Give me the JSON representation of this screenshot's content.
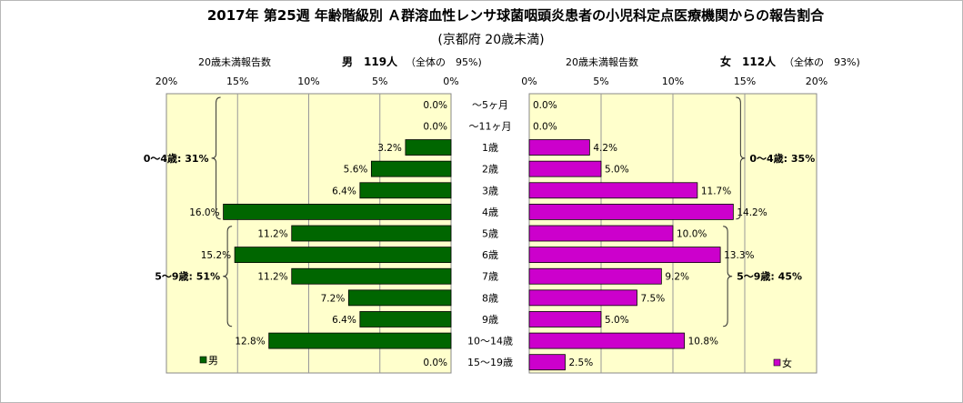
{
  "chart_data": {
    "type": "bar",
    "title": "2017年 第25週 年齢階級別 Ａ群溶血性レンサ球菌咽頭炎患者の小児科定点医療機関からの報告割合",
    "subtitle": "(京都府 20歳未満)",
    "categories": [
      "～5ヶ月",
      "～11ヶ月",
      "1歳",
      "2歳",
      "3歳",
      "4歳",
      "5歳",
      "6歳",
      "7歳",
      "8歳",
      "9歳",
      "10～14歳",
      "15～19歳"
    ],
    "tick_labels": [
      "0%",
      "5%",
      "10%",
      "15%",
      "20%"
    ],
    "xlim": [
      0,
      20
    ],
    "grid": true,
    "series": [
      {
        "name": "男",
        "side": "left",
        "color": "#006600",
        "values": [
          0.0,
          0.0,
          3.2,
          5.6,
          6.4,
          16.0,
          11.2,
          15.2,
          11.2,
          7.2,
          6.4,
          12.8,
          0.0
        ],
        "labels": [
          "0.0%",
          "0.0%",
          "3.2%",
          "5.6%",
          "6.4%",
          "16.0%",
          "11.2%",
          "15.2%",
          "11.2%",
          "7.2%",
          "6.4%",
          "12.8%",
          "0.0%"
        ],
        "header_count_label": "20歳未満報告数",
        "header_summary": "男　119人",
        "header_share": "（全体の　95%)",
        "groups": [
          {
            "label": "0～4歳: 31%",
            "from": 0,
            "to": 5
          },
          {
            "label": "5～9歳: 51%",
            "from": 6,
            "to": 10
          }
        ]
      },
      {
        "name": "女",
        "side": "right",
        "color": "#cc00cc",
        "values": [
          0.0,
          0.0,
          4.2,
          5.0,
          11.7,
          14.2,
          10.0,
          13.3,
          9.2,
          7.5,
          5.0,
          10.8,
          2.5
        ],
        "labels": [
          "0.0%",
          "0.0%",
          "4.2%",
          "5.0%",
          "11.7%",
          "14.2%",
          "10.0%",
          "13.3%",
          "9.2%",
          "7.5%",
          "5.0%",
          "10.8%",
          "2.5%"
        ],
        "header_count_label": "20歳未満報告数",
        "header_summary": "女　112人",
        "header_share": "（全体の　93%)",
        "groups": [
          {
            "label": "0～4歳: 35%",
            "from": 0,
            "to": 5
          },
          {
            "label": "5～9歳: 45%",
            "from": 6,
            "to": 10
          }
        ]
      }
    ]
  }
}
